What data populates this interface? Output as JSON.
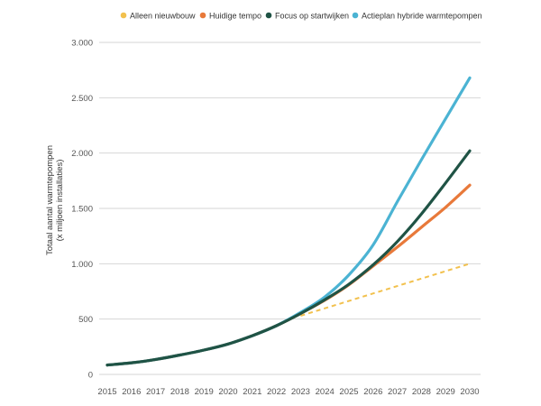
{
  "chart_data": {
    "type": "line",
    "title": "",
    "xlabel": "",
    "ylabel_lines": [
      "Totaal aantal warmtepompen",
      "(x miljoen installaties)"
    ],
    "x": [
      2015,
      2016,
      2017,
      2018,
      2019,
      2020,
      2021,
      2022,
      2023,
      2024,
      2025,
      2026,
      2027,
      2028,
      2029,
      2030
    ],
    "x_tick_labels": [
      "2015",
      "2016",
      "2017",
      "2018",
      "2019",
      "2020",
      "2021",
      "2022",
      "2023",
      "2024",
      "2025",
      "2026",
      "2027",
      "2028",
      "2029",
      "2030"
    ],
    "ylim": [
      0,
      3000
    ],
    "y_ticks": [
      0,
      500,
      1000,
      1500,
      2000,
      2500,
      3000
    ],
    "y_tick_labels": [
      "0",
      "500",
      "1.000",
      "1.500",
      "2.000",
      "2.500",
      "3.000"
    ],
    "grid": "horizontal",
    "legend_position": "top-right",
    "series": [
      {
        "name": "Alleen nieuwbouw",
        "color": "#F2C14E",
        "dashed": true,
        "x": [
          2023,
          2030
        ],
        "values": [
          530,
          1000
        ]
      },
      {
        "name": "Huidige tempo",
        "color": "#E8793A",
        "dashed": false,
        "x": [
          2015,
          2016,
          2017,
          2018,
          2019,
          2020,
          2021,
          2022,
          2023,
          2024,
          2025,
          2026,
          2027,
          2028,
          2029,
          2030
        ],
        "values": [
          85,
          105,
          135,
          175,
          220,
          275,
          350,
          440,
          550,
          670,
          810,
          980,
          1150,
          1330,
          1510,
          1710
        ]
      },
      {
        "name": "Focus op startwijken",
        "color": "#1F5345",
        "dashed": false,
        "x": [
          2015,
          2016,
          2017,
          2018,
          2019,
          2020,
          2021,
          2022,
          2023,
          2024,
          2025,
          2026,
          2027,
          2028,
          2029,
          2030
        ],
        "values": [
          85,
          105,
          135,
          175,
          220,
          275,
          350,
          440,
          550,
          675,
          815,
          990,
          1200,
          1450,
          1730,
          2020
        ]
      },
      {
        "name": "Actieplan hybride warmtepompen",
        "color": "#4BB3D3",
        "dashed": false,
        "x": [
          2015,
          2016,
          2017,
          2018,
          2019,
          2020,
          2021,
          2022,
          2023,
          2024,
          2025,
          2026,
          2027,
          2028,
          2029,
          2030
        ],
        "values": [
          85,
          105,
          135,
          175,
          220,
          275,
          350,
          440,
          560,
          700,
          900,
          1170,
          1560,
          1940,
          2310,
          2680
        ]
      }
    ],
    "draw_order": [
      0,
      1,
      3,
      2
    ]
  }
}
